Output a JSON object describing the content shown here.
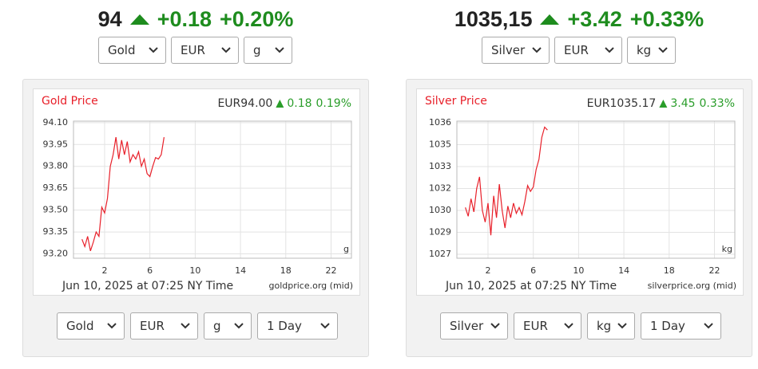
{
  "widgets": [
    {
      "price": "94",
      "change": "+0.18",
      "change_pct": "+0.20%",
      "selects": [
        "Gold",
        "EUR",
        "g"
      ],
      "bottom_selects": [
        "Gold",
        "EUR",
        "g",
        "1 Day"
      ]
    },
    {
      "price": "1035,15",
      "change": "+3.42",
      "change_pct": "+0.33%",
      "selects": [
        "Silver",
        "EUR",
        "kg"
      ],
      "bottom_selects": [
        "Silver",
        "EUR",
        "kg",
        "1 Day"
      ]
    }
  ],
  "chart_data": [
    {
      "type": "line",
      "title": "Gold Price",
      "quote": "EUR94.00",
      "change": "0.18",
      "change_pct": "0.19%",
      "unit_label": "g",
      "date_label": "Jun 10, 2025 at 07:25 NY Time",
      "source": "goldprice.org (mid)",
      "color": "#e8202a",
      "grid": true,
      "x": [
        0,
        0.25,
        0.5,
        0.75,
        1,
        1.25,
        1.5,
        1.75,
        2,
        2.25,
        2.5,
        2.75,
        3,
        3.25,
        3.5,
        3.75,
        4,
        4.25,
        4.5,
        4.75,
        5,
        5.25,
        5.5,
        5.75,
        6,
        6.25,
        6.5,
        6.75,
        7,
        7.25
      ],
      "values": [
        93.3,
        93.25,
        93.32,
        93.22,
        93.28,
        93.35,
        93.32,
        93.52,
        93.48,
        93.58,
        93.8,
        93.88,
        94.0,
        93.85,
        93.98,
        93.88,
        93.97,
        93.83,
        93.88,
        93.85,
        93.9,
        93.8,
        93.85,
        93.75,
        93.73,
        93.8,
        93.86,
        93.85,
        93.88,
        94.0
      ],
      "xlim": [
        -0.75,
        23.8
      ],
      "xticks": [
        2,
        6,
        10,
        14,
        18,
        22
      ],
      "ylim": [
        93.17,
        94.11
      ],
      "yticks": [
        {
          "value": 93.2,
          "label": "93.20"
        },
        93.35,
        {
          "value": 93.5,
          "label": "93.50"
        },
        93.65,
        {
          "value": 93.8,
          "label": "93.80"
        },
        93.95,
        {
          "value": 94.1,
          "label": "94.10"
        }
      ]
    },
    {
      "type": "line",
      "title": "Silver Price",
      "quote": "EUR1035.17",
      "change": "3.45",
      "change_pct": "0.33%",
      "unit_label": "kg",
      "date_label": "Jun 10, 2025 at 07:25 NY Time",
      "source": "silverprice.org (mid)",
      "color": "#e8202a",
      "grid": true,
      "x": [
        0,
        0.25,
        0.5,
        0.75,
        1,
        1.25,
        1.5,
        1.75,
        2,
        2.25,
        2.5,
        2.75,
        3,
        3.25,
        3.5,
        3.75,
        4,
        4.25,
        4.5,
        4.75,
        5,
        5.25,
        5.5,
        5.75,
        6,
        6.25,
        6.5,
        6.75,
        7,
        7.25
      ],
      "values": [
        1030.2,
        1029.6,
        1030.8,
        1029.9,
        1031.5,
        1032.3,
        1030.0,
        1029.2,
        1030.5,
        1028.3,
        1031.0,
        1029.5,
        1031.8,
        1030.0,
        1028.8,
        1030.3,
        1029.5,
        1030.5,
        1029.8,
        1030.2,
        1029.7,
        1030.6,
        1031.7,
        1031.3,
        1031.6,
        1032.8,
        1033.5,
        1035.0,
        1035.7,
        1035.5
      ],
      "xlim": [
        -0.75,
        23.8
      ],
      "xticks": [
        2,
        6,
        10,
        14,
        18,
        22
      ],
      "ylim": [
        1026.73,
        1036.11
      ],
      "yticks": [
        1027,
        {
          "value": 1028.5,
          "label": "1029"
        },
        1030,
        {
          "value": 1031.5,
          "label": "1032"
        },
        1033,
        {
          "value": 1034.5,
          "label": "1035"
        },
        1036
      ]
    }
  ]
}
